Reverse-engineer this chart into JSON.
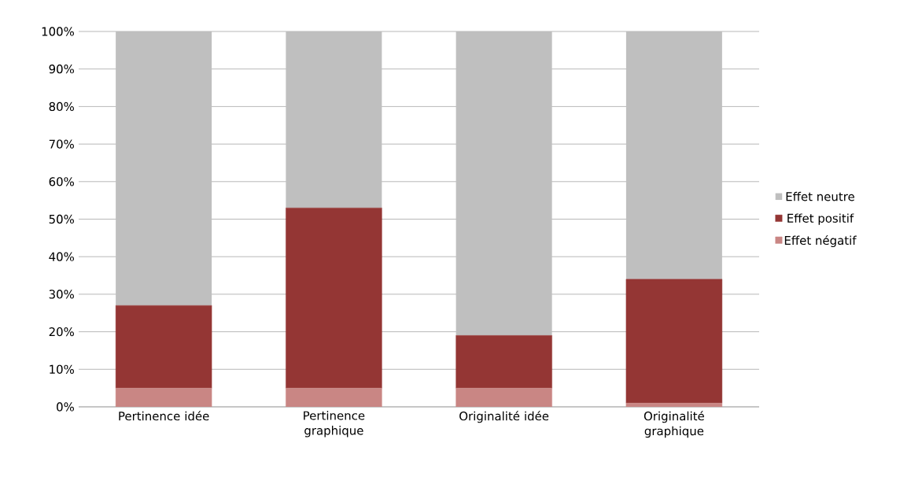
{
  "chart_data": {
    "type": "bar",
    "stacked": true,
    "categories": [
      "Pertinence idée",
      "Pertinence graphique",
      "Originalité idée",
      "Originalité graphique"
    ],
    "series": [
      {
        "name": "Effet négatif",
        "color": "#c98684",
        "values": [
          5,
          5,
          5,
          1
        ]
      },
      {
        "name": "Effet positif",
        "color": "#943634",
        "values": [
          22,
          48,
          14,
          33
        ]
      },
      {
        "name": "Effet neutre",
        "color": "#bfbfbf",
        "values": [
          73,
          47,
          81,
          66
        ]
      }
    ],
    "ylim": [
      0,
      100
    ],
    "yticks": [
      {
        "value": 0,
        "label": "0%"
      },
      {
        "value": 10,
        "label": "10%"
      },
      {
        "value": 20,
        "label": "20%"
      },
      {
        "value": 30,
        "label": "30%"
      },
      {
        "value": 40,
        "label": "40%"
      },
      {
        "value": 50,
        "label": "50%"
      },
      {
        "value": 60,
        "label": "60%"
      },
      {
        "value": 70,
        "label": "70%"
      },
      {
        "value": 80,
        "label": "80%"
      },
      {
        "value": 90,
        "label": "90%"
      },
      {
        "value": 100,
        "label": "100%"
      }
    ],
    "grid": "y",
    "legend": "right"
  }
}
